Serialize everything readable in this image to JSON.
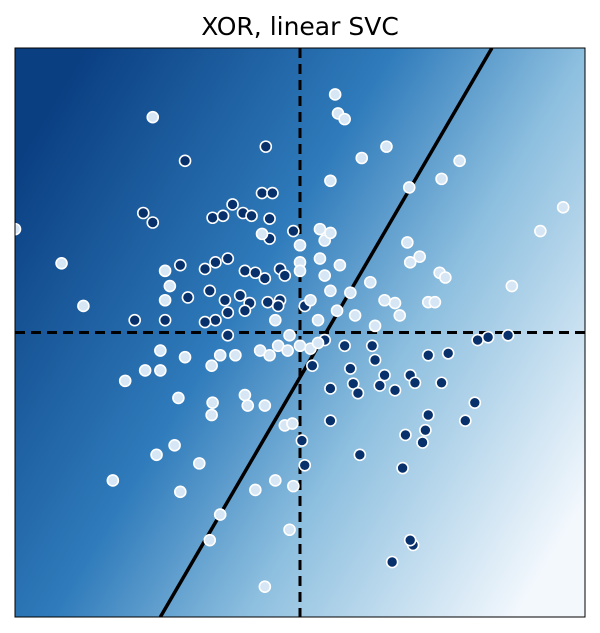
{
  "chart_data": {
    "type": "scatter",
    "title": "XOR, linear SVC",
    "xlim": [
      -3,
      3
    ],
    "ylim": [
      -3,
      3
    ],
    "hline": 0,
    "vline": 0,
    "boundary": {
      "x": [
        -1.47,
        2.02
      ],
      "y": [
        -3,
        3
      ],
      "color": "#000000"
    },
    "series": [
      {
        "color": "#08306b",
        "x": [
          -0.36,
          -1.21,
          -1.65,
          -1.55,
          -0.92,
          -0.81,
          -0.71,
          -0.6,
          -0.4,
          -0.29,
          -0.51,
          -0.32,
          -0.07,
          -0.32,
          -1.26,
          -1.0,
          -0.89,
          -0.76,
          -0.58,
          -0.47,
          -0.37,
          -0.21,
          -0.16,
          -1.18,
          -0.95,
          -0.79,
          -0.63,
          -0.53,
          -0.34,
          -0.21,
          -0.89,
          -0.76,
          -0.58,
          -1.74,
          -1.42,
          -1.0,
          -0.76,
          -0.23,
          0.05,
          0.26,
          0.47,
          0.53,
          0.76,
          0.79,
          0.89,
          1.16,
          1.35,
          1.56,
          1.87,
          1.98,
          2.19,
          0.02,
          0.05,
          0.13,
          0.32,
          0.56,
          0.61,
          0.84,
          1.0,
          1.21,
          1.49,
          1.84,
          1.74,
          1.35,
          1.32,
          1.11,
          1.29,
          0.32,
          0.63,
          1.08,
          0.97,
          1.19,
          1.16
        ],
        "y": [
          1.96,
          1.81,
          1.26,
          1.16,
          1.21,
          1.23,
          1.35,
          1.26,
          1.47,
          1.47,
          1.23,
          1.2,
          1.07,
          0.99,
          0.71,
          0.67,
          0.74,
          0.78,
          0.65,
          0.63,
          0.57,
          0.67,
          0.6,
          0.37,
          0.44,
          0.34,
          0.39,
          0.31,
          0.32,
          0.34,
          0.13,
          0.21,
          0.23,
          0.13,
          0.13,
          0.11,
          -0.03,
          0.28,
          0.28,
          -0.08,
          -0.14,
          -0.38,
          -0.14,
          -0.29,
          -0.45,
          -0.45,
          -0.24,
          -0.22,
          -0.08,
          -0.05,
          -0.03,
          -1.14,
          -1.4,
          -0.35,
          -0.59,
          -0.54,
          -0.64,
          -0.56,
          -0.61,
          -0.53,
          -0.53,
          -0.74,
          -0.93,
          -0.87,
          -1.03,
          -1.08,
          -1.16,
          -0.93,
          -1.29,
          -1.43,
          -2.42,
          -2.24,
          -2.19
        ]
      },
      {
        "color": "#d6e6f4",
        "x": [
          -3.0,
          -2.51,
          -2.28,
          -1.55,
          0.37,
          0.4,
          0.47,
          0.65,
          0.91,
          1.15,
          1.49,
          1.68,
          0.32,
          2.77,
          2.53,
          2.23,
          1.13,
          1.26,
          1.16,
          1.47,
          1.53,
          1.35,
          1.42,
          1.0,
          1.05,
          0.79,
          0.89,
          0.74,
          0.53,
          0.32,
          0.26,
          0.42,
          0.21,
          0.26,
          0.32,
          0.21,
          0.0,
          0.11,
          0.19,
          -1.47,
          -1.21,
          -0.93,
          -0.68,
          -0.42,
          -0.23,
          -0.13,
          0.11,
          0.19,
          -1.84,
          -1.63,
          -1.47,
          -1.28,
          -0.92,
          -0.93,
          -0.58,
          -0.55,
          -0.37,
          -0.16,
          -0.08,
          -1.32,
          -1.51,
          -1.06,
          -1.97,
          -1.26,
          -0.47,
          -0.26,
          -0.07,
          -0.84,
          -0.95,
          -0.11,
          -0.37,
          -0.4,
          0.0,
          0.0,
          0.39,
          0.58,
          -0.26,
          -0.11,
          0.0,
          -0.32,
          -0.84,
          -1.42,
          -1.37,
          -1.42
        ],
        "y": [
          1.09,
          0.73,
          0.28,
          2.27,
          2.51,
          2.31,
          2.25,
          1.84,
          1.96,
          1.53,
          1.62,
          1.81,
          1.6,
          1.32,
          1.07,
          0.49,
          0.95,
          0.8,
          0.74,
          0.63,
          0.58,
          0.32,
          0.32,
          0.31,
          0.18,
          0.07,
          0.34,
          0.53,
          0.42,
          0.44,
          0.6,
          0.71,
          0.78,
          0.97,
          1.05,
          1.09,
          0.74,
          0.34,
          0.13,
          -0.19,
          -0.26,
          -0.35,
          -0.24,
          -0.19,
          -0.14,
          -0.19,
          -0.17,
          -0.11,
          -0.51,
          -0.4,
          -0.4,
          -0.69,
          -0.74,
          -0.87,
          -0.66,
          -0.77,
          -0.77,
          -0.98,
          -0.96,
          -1.19,
          -1.29,
          -1.38,
          -1.56,
          -1.68,
          -1.66,
          -1.56,
          -1.62,
          -1.92,
          -2.19,
          -2.08,
          -2.68,
          1.04,
          0.65,
          0.92,
          0.23,
          0.18,
          0.13,
          -0.03,
          -0.14,
          -0.24,
          -0.24,
          0.34,
          0.49,
          0.65
        ]
      }
    ]
  }
}
